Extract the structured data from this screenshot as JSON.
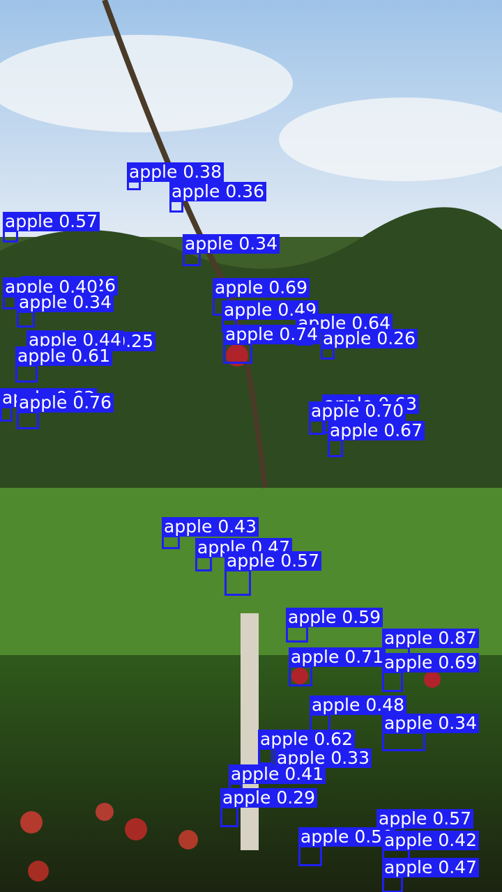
{
  "detections": [
    "apple 0.38",
    "apple 0.36",
    "apple 0.57",
    "apple 0.34",
    "apple 0.26",
    "apple 0.40",
    "apple 0.34",
    "apple 0.69",
    "apple 0.49",
    "apple 0.64",
    "apple 0.25",
    "apple 0.44",
    "apple 0.74",
    "apple 0.26",
    "apple 0.61",
    "apple 0.63",
    "apple 0.76",
    "apple 0.63",
    "apple 0.70",
    "apple 0.67",
    "apple 0.43",
    "apple 0.47",
    "apple 0.57",
    "apple 0.59",
    "apple 0.87",
    "apple 0.71",
    "apple 0.69",
    "apple 0.48",
    "apple 0.34",
    "apple 0.62",
    "apple 0.33",
    "apple 0.41",
    "apple 0.29",
    "apple 0.57",
    "apple 0.50",
    "apple 0.42",
    "apple 0.47"
  ]
}
